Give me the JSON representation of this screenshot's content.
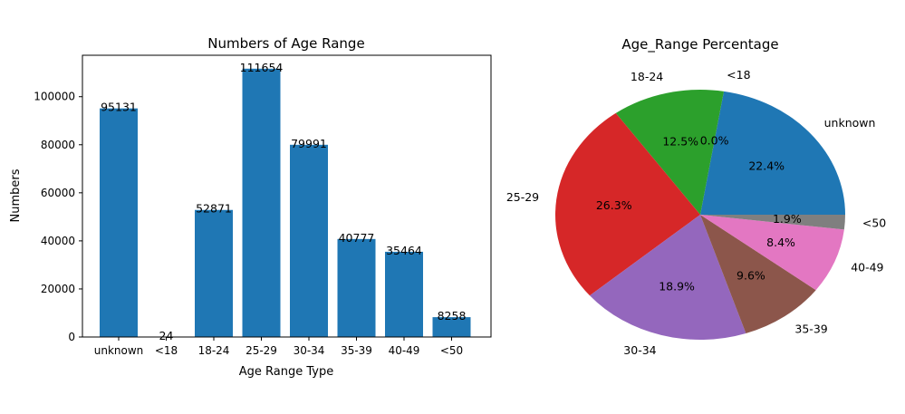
{
  "chart_data": [
    {
      "type": "bar",
      "title": "Numbers of Age Range",
      "xlabel": "Age Range Type",
      "ylabel": "Numbers",
      "categories": [
        "unknown",
        "<18",
        "18-24",
        "25-29",
        "30-34",
        "35-39",
        "40-49",
        "<50"
      ],
      "values": [
        95131,
        24,
        52871,
        111654,
        79991,
        40777,
        35464,
        8258
      ],
      "data_labels": [
        "95131",
        "24",
        "52871",
        "111654",
        "79991",
        "40777",
        "35464",
        "8258"
      ],
      "yticks": [
        0,
        20000,
        40000,
        60000,
        80000,
        100000
      ],
      "ytick_labels": [
        "0",
        "20000",
        "40000",
        "60000",
        "80000",
        "100000"
      ],
      "ylim": [
        0,
        117236.7
      ],
      "color": "#1f77b4",
      "grid": false
    },
    {
      "type": "pie",
      "title": "Age_Range Percentage",
      "labels": [
        "unknown",
        "<18",
        "18-24",
        "25-29",
        "30-34",
        "35-39",
        "40-49",
        "<50"
      ],
      "values": [
        22.4,
        0.0,
        12.5,
        26.3,
        18.9,
        9.6,
        8.4,
        1.9
      ],
      "pct_labels": [
        "22.4%",
        "0.0%",
        "12.5%",
        "26.3%",
        "18.9%",
        "9.6%",
        "8.4%",
        "1.9%"
      ],
      "colors": [
        "#1f77b4",
        "#ff7f0e",
        "#2ca02c",
        "#d62728",
        "#9467bd",
        "#8c564b",
        "#e377c2",
        "#7f7f7f"
      ],
      "start_angle": 0,
      "direction": "counterclockwise"
    }
  ]
}
